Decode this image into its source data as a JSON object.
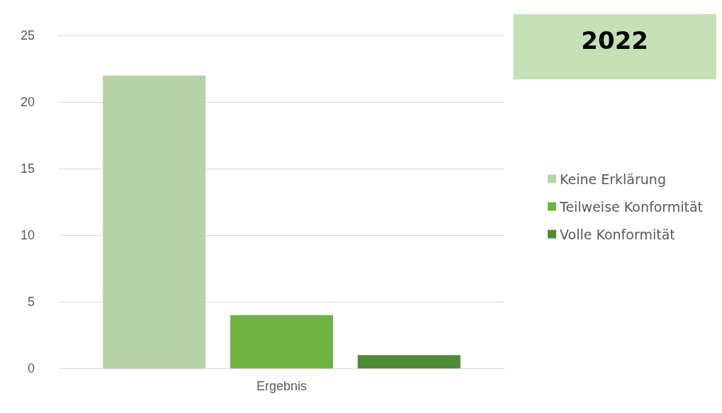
{
  "chart_data": {
    "type": "bar",
    "title": "2022",
    "xlabel": null,
    "categories": [
      "Ergebnis"
    ],
    "series": [
      {
        "name": "Keine Erklärung",
        "color": "#b5d3a6",
        "values": [
          22
        ]
      },
      {
        "name": "Teilweise Konformität",
        "color": "#6fb442",
        "values": [
          4
        ]
      },
      {
        "name": "Volle Konformität",
        "color": "#4f8a37",
        "values": [
          1
        ]
      }
    ],
    "ylim": [
      0,
      25
    ],
    "yticks": [
      0,
      5,
      10,
      15,
      20,
      25
    ],
    "grid": "y",
    "legend": "right"
  }
}
